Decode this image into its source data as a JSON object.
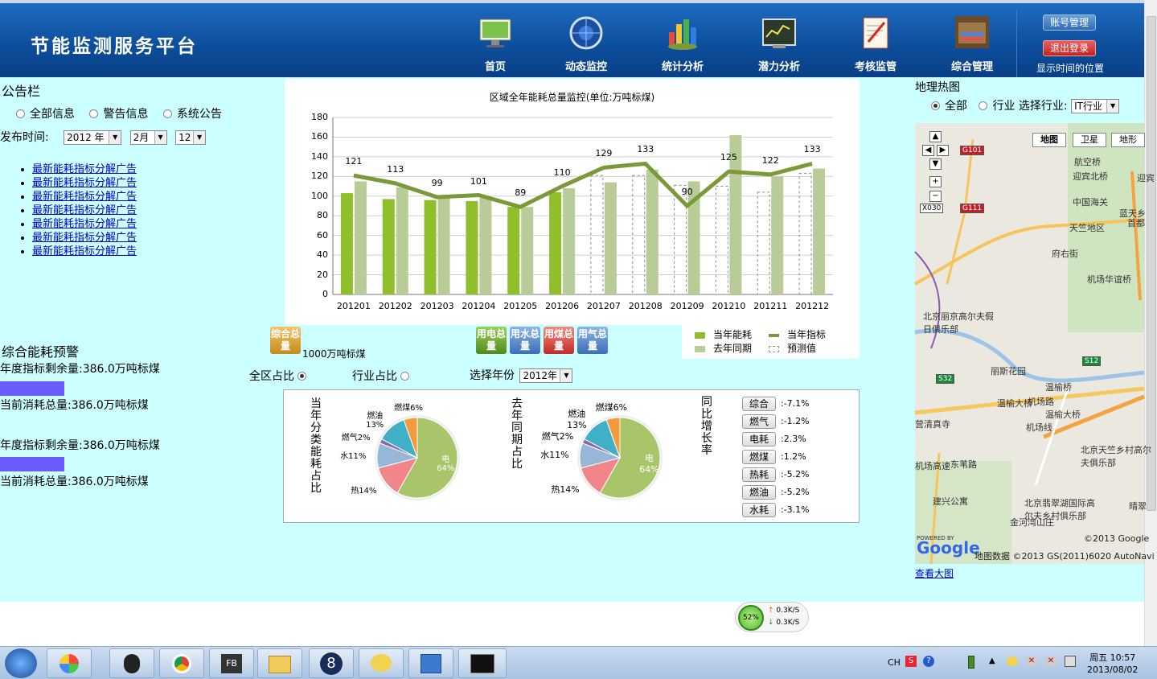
{
  "header": {
    "title": "节能监测服务平台",
    "nav": [
      "首页",
      "动态监控",
      "统计分析",
      "潜力分析",
      "考核监管",
      "综合管理"
    ],
    "account_btn": "账号管理",
    "logout_btn": "退出登录",
    "time_location": "显示时间的位置"
  },
  "notice": {
    "title": "公告栏",
    "filters": [
      "全部信息",
      "警告信息",
      "系统公告"
    ],
    "date_label": "发布时间:",
    "year": "2012 年",
    "month": "2月",
    "day": "12",
    "items": [
      "最新能耗指标分解广告",
      "最新能耗指标分解广告",
      "最新能耗指标分解广告",
      "最新能耗指标分解广告",
      "最新能耗指标分解广告",
      "最新能耗指标分解广告",
      "最新能耗指标分解广告"
    ]
  },
  "warning": {
    "title": "综合能耗预警",
    "remain_1": "年度指标剩余量:386.0万吨标煤",
    "used_1": "当前消耗总量:386.0万吨标煤",
    "remain_2": "年度指标剩余量:386.0万吨标煤",
    "used_2": "当前消耗总量:386.0万吨标煤",
    "bar_color": "#6a5cff"
  },
  "chart_data": {
    "type": "bar",
    "title": "区域全年能耗总量监控(单位:万吨标煤)",
    "categories": [
      "201201",
      "201202",
      "201203",
      "201204",
      "201205",
      "201206",
      "201207",
      "201208",
      "201209",
      "201210",
      "201211",
      "201212"
    ],
    "ylim": [
      0,
      180
    ],
    "yticks": [
      0,
      20,
      40,
      60,
      80,
      100,
      120,
      140,
      160,
      180
    ],
    "series": [
      {
        "name": "当年能耗",
        "type": "bar",
        "values": [
          103,
          97,
          96,
          95,
          89,
          104,
          null,
          null,
          null,
          null,
          null,
          null
        ],
        "color": "#8fbf2a"
      },
      {
        "name": "去年同期",
        "type": "bar",
        "values": [
          115,
          109,
          99,
          98,
          89,
          108,
          114,
          127,
          115,
          162,
          120,
          128
        ],
        "color": "#b9cc98"
      },
      {
        "name": "当年指标",
        "type": "line",
        "values": [
          121,
          113,
          99,
          101,
          89,
          110,
          129,
          133,
          90,
          125,
          122,
          133
        ],
        "color": "#7a9a3a"
      },
      {
        "name": "预测值",
        "type": "bar",
        "values": [
          null,
          null,
          null,
          null,
          null,
          null,
          121,
          121,
          111,
          110,
          104,
          123
        ],
        "style": "dashed"
      }
    ],
    "grid": true,
    "legend": "bottom-right"
  },
  "chart_controls": {
    "total_btn": "综合总量",
    "unit_text": "1000万吨标煤",
    "type_btns": [
      "用电总量",
      "用水总量",
      "用煤总量",
      "用气总量"
    ],
    "scope_all": "全区占比",
    "scope_industry": "行业占比",
    "year_label": "选择年份",
    "year_value": "2012年"
  },
  "pies": {
    "current_title": "当年分类能耗占比",
    "last_title": "去年同期占比",
    "growth_title": "同比增长率",
    "slices": [
      {
        "name": "电",
        "label": "电\n64%",
        "value": 64,
        "color": "#a8c56a"
      },
      {
        "name": "热",
        "label": "热14%",
        "value": 14,
        "color": "#f0868a"
      },
      {
        "name": "水",
        "label": "水11%",
        "value": 11,
        "color": "#97b7d9"
      },
      {
        "name": "燃气",
        "label": "燃气2%",
        "value": 2,
        "color": "#8a6aab"
      },
      {
        "name": "燃油",
        "label": "燃油\n13%",
        "value": 13,
        "color": "#3fb0c8"
      },
      {
        "name": "燃煤",
        "label": "燃煤6%",
        "value": 6,
        "color": "#f39a3c"
      }
    ],
    "rates": [
      {
        "label": "综合",
        "value": ":-7.1%"
      },
      {
        "label": "燃气",
        "value": ":-1.2%"
      },
      {
        "label": "电耗",
        "value": ":2.3%"
      },
      {
        "label": "燃煤",
        "value": ":1.2%"
      },
      {
        "label": "热耗",
        "value": ":-5.2%"
      },
      {
        "label": "燃油",
        "value": ":-5.2%"
      },
      {
        "label": "水耗",
        "value": ":-3.1%"
      }
    ]
  },
  "map": {
    "title": "地理热图",
    "scope_all": "全部",
    "scope_industry": "行业",
    "select_label": "选择行业:",
    "industry_value": "IT行业",
    "tabs": [
      "地图",
      "卫星",
      "地形"
    ],
    "places": [
      "航空桥",
      "迎宾北桥",
      "中国海关",
      "天竺地区",
      "机场华谊桥",
      "北京丽京高尔夫假日俱乐部",
      "丽斯花园",
      "温榆桥",
      "温榆大桥",
      "温榆大桥",
      "机场线",
      "北京天竺乡村高尔夫俱乐部",
      "北京翡翠湖国际高尔夫乡村俱乐部",
      "建兴公寓",
      "营清真寺",
      "东苇路",
      "金河湾山庄",
      "蓝天乡",
      "府右街",
      "首都",
      "迎宾",
      "晴翠"
    ],
    "roads": [
      "G101",
      "G111",
      "X030",
      "S32",
      "S12",
      "机场高速",
      "机场路"
    ],
    "copyright": "©2013 Google",
    "map_data": "地图数据 ©2013 GS(2011)6020 AutoNavi",
    "powered": "POWERED BY",
    "brand": "Google",
    "view_large": "查看大图"
  },
  "net_widget": {
    "percent": "52%",
    "up": "0.3K/S",
    "down": "0.3K/S"
  },
  "taskbar": {
    "lang": "CH",
    "clock_time": "10:57",
    "clock_day": "周五",
    "clock_date": "2013/08/02"
  }
}
